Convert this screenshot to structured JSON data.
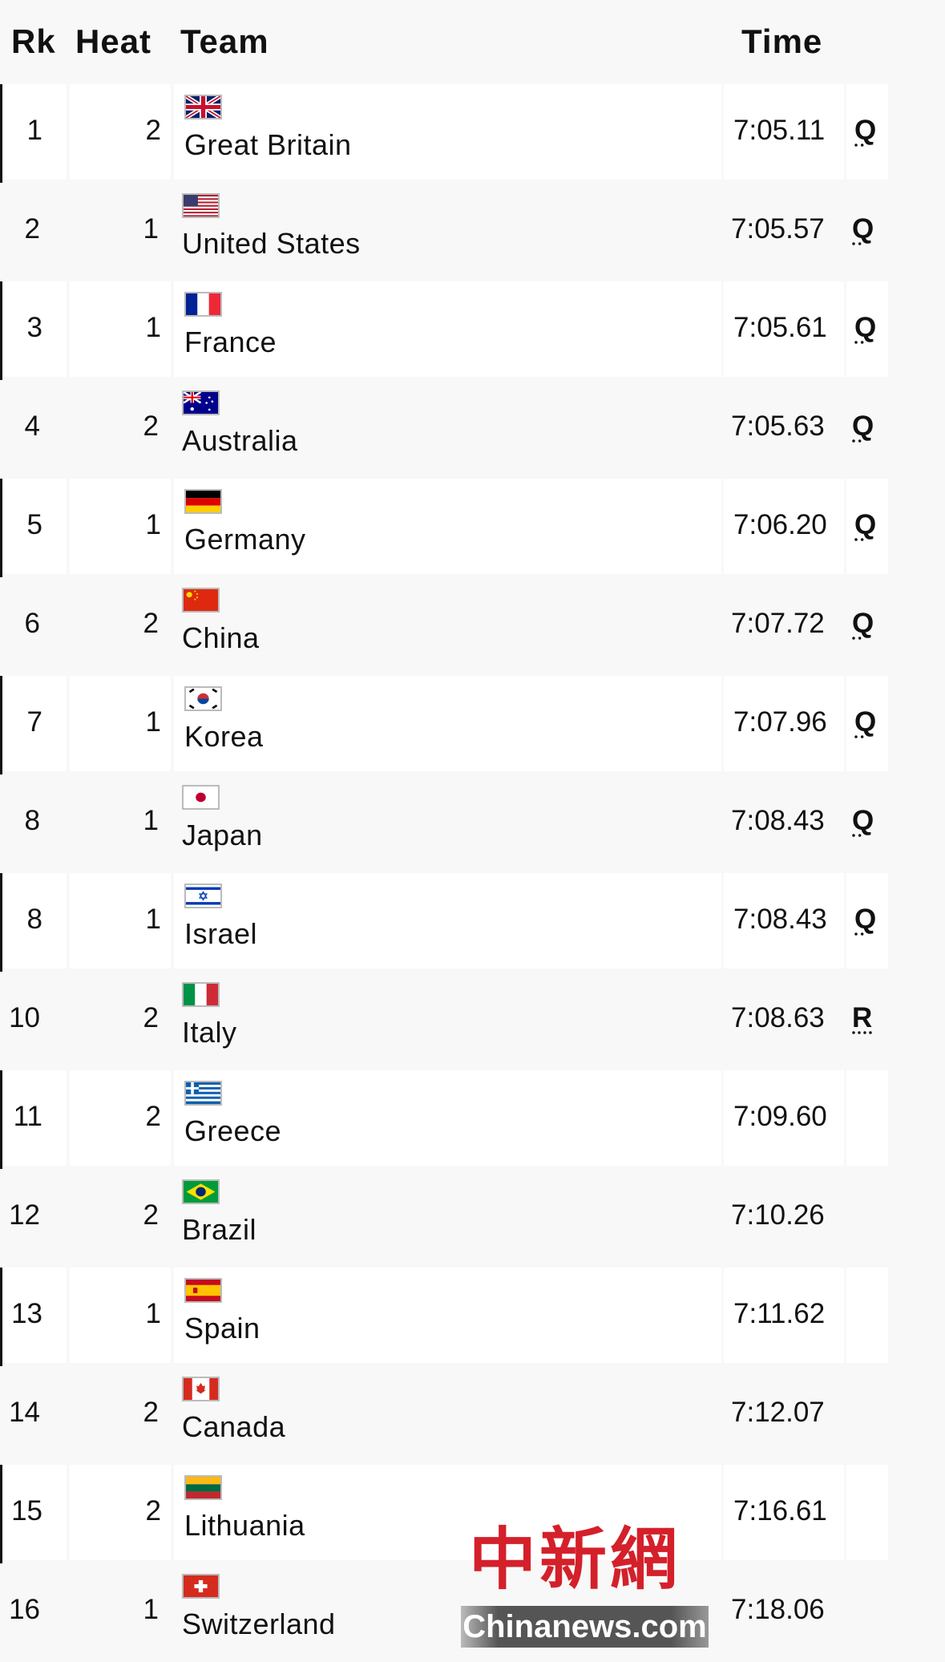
{
  "header": {
    "rk": "Rk",
    "heat": "Heat",
    "team": "Team",
    "time": "Time"
  },
  "rows": [
    {
      "rk": "1",
      "heat": "2",
      "team": "Great Britain",
      "flag": "gb",
      "time": "7:05.11",
      "q": "Q"
    },
    {
      "rk": "2",
      "heat": "1",
      "team": "United States",
      "flag": "us",
      "time": "7:05.57",
      "q": "Q"
    },
    {
      "rk": "3",
      "heat": "1",
      "team": "France",
      "flag": "fr",
      "time": "7:05.61",
      "q": "Q"
    },
    {
      "rk": "4",
      "heat": "2",
      "team": "Australia",
      "flag": "au",
      "time": "7:05.63",
      "q": "Q"
    },
    {
      "rk": "5",
      "heat": "1",
      "team": "Germany",
      "flag": "de",
      "time": "7:06.20",
      "q": "Q"
    },
    {
      "rk": "6",
      "heat": "2",
      "team": "China",
      "flag": "cn",
      "time": "7:07.72",
      "q": "Q"
    },
    {
      "rk": "7",
      "heat": "1",
      "team": "Korea",
      "flag": "kr",
      "time": "7:07.96",
      "q": "Q"
    },
    {
      "rk": "8",
      "heat": "1",
      "team": "Japan",
      "flag": "jp",
      "time": "7:08.43",
      "q": "Q"
    },
    {
      "rk": "8",
      "heat": "1",
      "team": "Israel",
      "flag": "il",
      "time": "7:08.43",
      "q": "Q"
    },
    {
      "rk": "10",
      "heat": "2",
      "team": "Italy",
      "flag": "it",
      "time": "7:08.63",
      "q": "R"
    },
    {
      "rk": "11",
      "heat": "2",
      "team": "Greece",
      "flag": "gr",
      "time": "7:09.60",
      "q": ""
    },
    {
      "rk": "12",
      "heat": "2",
      "team": "Brazil",
      "flag": "br",
      "time": "7:10.26",
      "q": ""
    },
    {
      "rk": "13",
      "heat": "1",
      "team": "Spain",
      "flag": "es",
      "time": "7:11.62",
      "q": ""
    },
    {
      "rk": "14",
      "heat": "2",
      "team": "Canada",
      "flag": "ca",
      "time": "7:12.07",
      "q": ""
    },
    {
      "rk": "15",
      "heat": "2",
      "team": "Lithuania",
      "flag": "lt",
      "time": "7:16.61",
      "q": ""
    },
    {
      "rk": "16",
      "heat": "1",
      "team": "Switzerland",
      "flag": "ch",
      "time": "7:18.06",
      "q": ""
    }
  ],
  "watermark": {
    "chinese": "中新網",
    "latin": "Chinanews.com"
  }
}
